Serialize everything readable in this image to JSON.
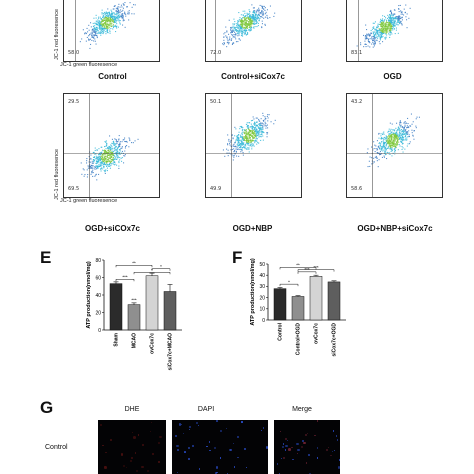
{
  "flow": {
    "panels": [
      {
        "caption": "Control",
        "q_upper": "",
        "q_lower": "58.0"
      },
      {
        "caption": "Control+siCox7c",
        "q_upper": "",
        "q_lower": "72.0"
      },
      {
        "caption": "OGD",
        "q_upper": "",
        "q_lower": "83.1"
      },
      {
        "caption": "OGD+siCOx7c",
        "q_upper": "29.5",
        "q_lower": "69.5"
      },
      {
        "caption": "OGD+NBP",
        "q_upper": "50.1",
        "q_lower": "49.9"
      },
      {
        "caption": "OGD+NBP+siCox7c",
        "q_upper": "43.2",
        "q_lower": "58.6"
      }
    ],
    "ylabel": "JC-1 red fluoresence",
    "xlabel": "JC-1 green fluoresence",
    "colors": {
      "scatter_outer": "#3f7fc4",
      "scatter_mid": "#38b8d8",
      "scatter_core": "#7ec83c",
      "gate": "#555555"
    }
  },
  "panel_E": {
    "letter": "E",
    "chart_data": {
      "type": "bar",
      "categories": [
        "Sham",
        "MCAO",
        "ovCox7c",
        "siCox7c+MCAO"
      ],
      "values": [
        53,
        29,
        62,
        44
      ],
      "errors": [
        2,
        2,
        3,
        8
      ],
      "ylabel": "ATP production(nmol/mg)",
      "ylim": [
        0,
        80
      ],
      "yticks": [
        "0",
        "20",
        "40",
        "60",
        "80"
      ],
      "significance": [
        "**",
        "***",
        "*",
        "*",
        "***"
      ],
      "colors": [
        "#2b2b2b",
        "#8f8f8f",
        "#d4d4d4",
        "#5e5e5e"
      ]
    }
  },
  "panel_F": {
    "letter": "F",
    "chart_data": {
      "type": "bar",
      "categories": [
        "Control",
        "Control+OGD",
        "ovCox7c",
        "siCox7c+OGD"
      ],
      "values": [
        28,
        21,
        39,
        34
      ],
      "errors": [
        1,
        0.8,
        1,
        1
      ],
      "ylabel": "ATP production(nmol/mg)",
      "ylim": [
        0,
        50
      ],
      "yticks": [
        "0",
        "10",
        "20",
        "30",
        "40",
        "50"
      ],
      "significance": [
        "**",
        "*",
        "***",
        "***"
      ],
      "colors": [
        "#2b2b2b",
        "#8f8f8f",
        "#d4d4d4",
        "#5e5e5e"
      ]
    }
  },
  "panel_G": {
    "letter": "G",
    "columns": [
      "DHE",
      "DAPI",
      "Merge"
    ],
    "column_colors": [
      "#d62020",
      "#2f58d6",
      "#222222"
    ],
    "row_label": "Control"
  }
}
